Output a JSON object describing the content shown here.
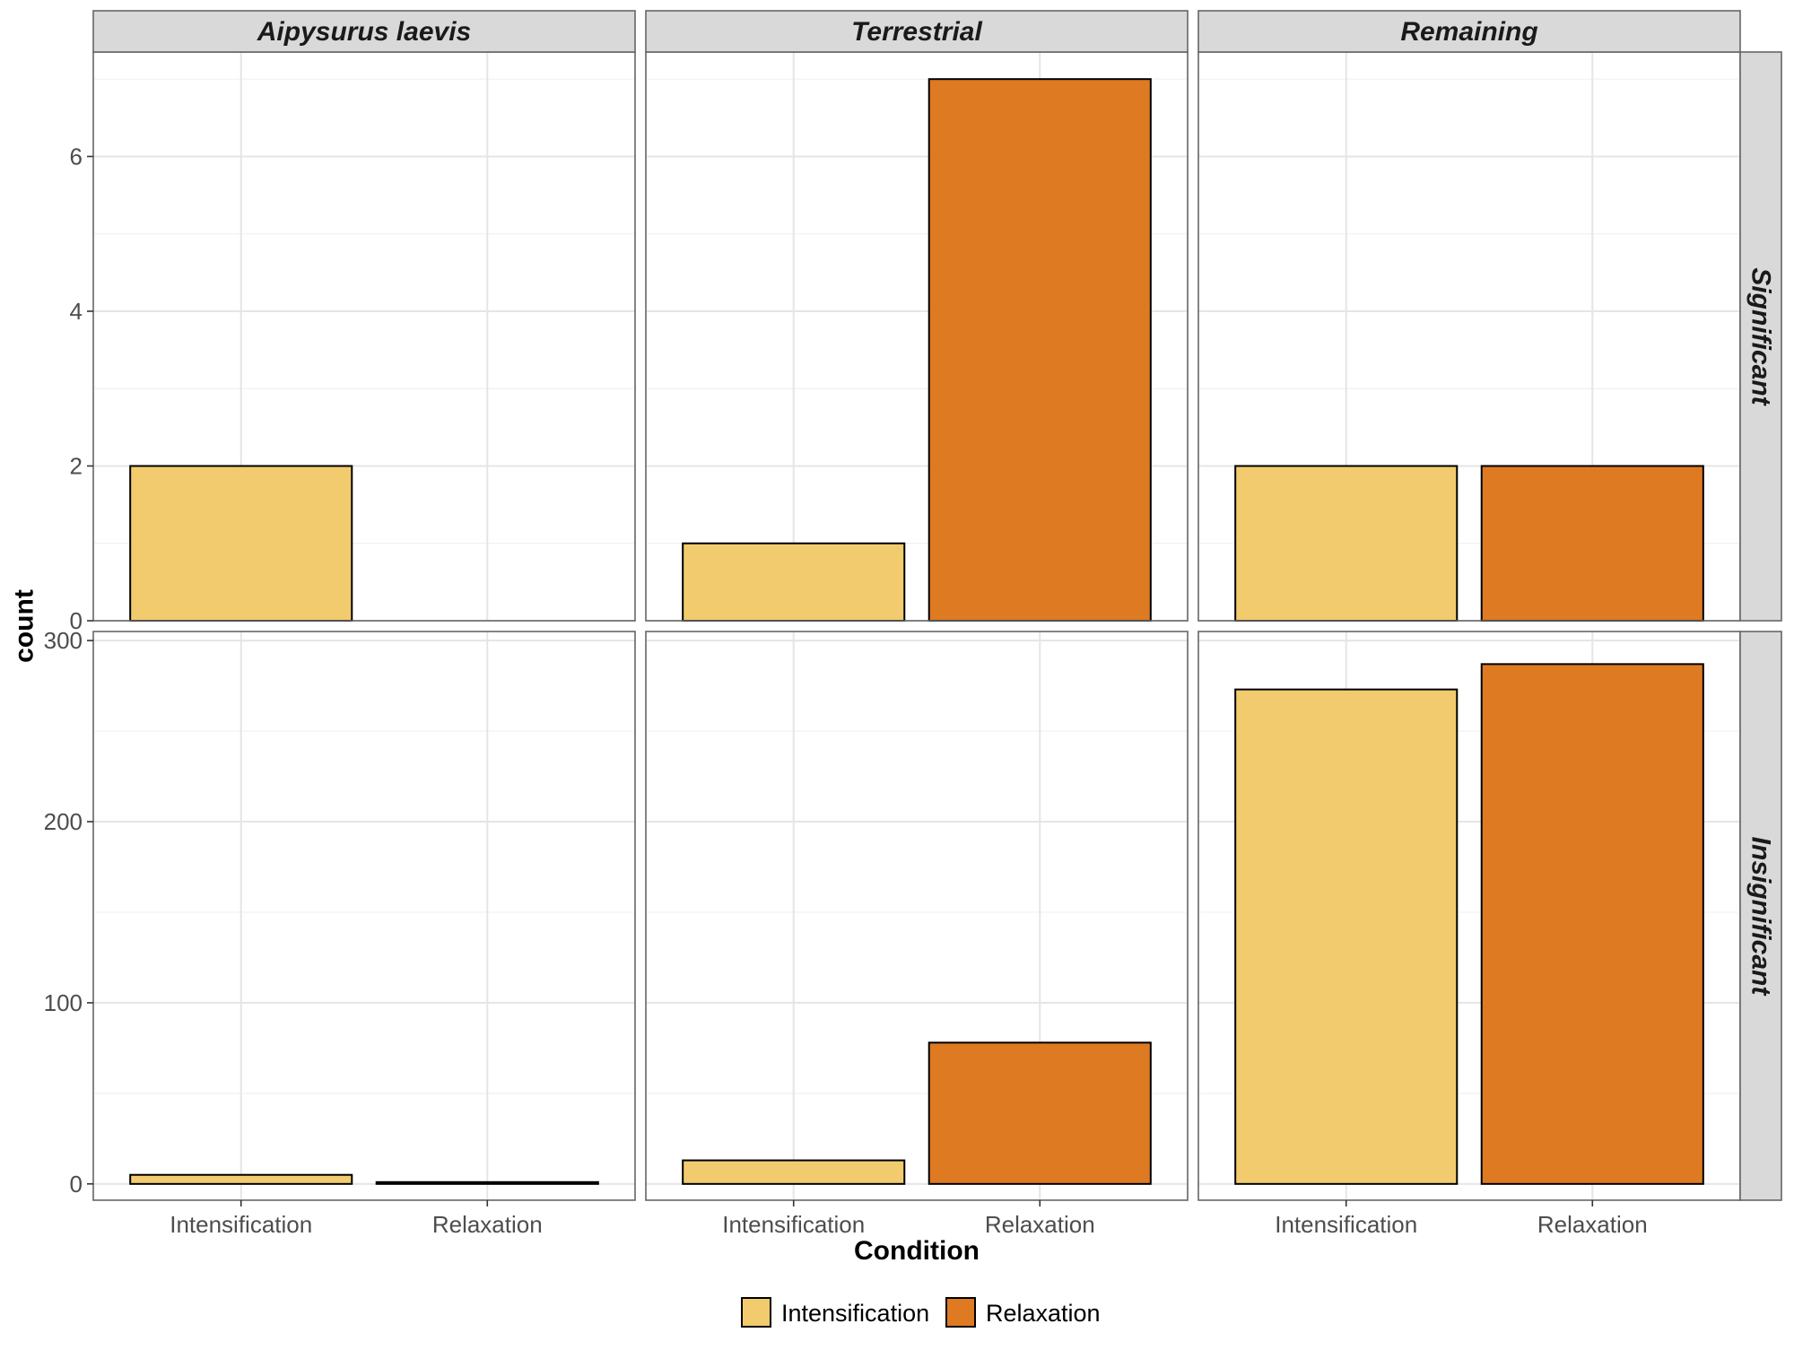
{
  "chart_data": {
    "type": "bar",
    "facet_columns": [
      "Aipysurus laevis",
      "Terrestrial",
      "Remaining"
    ],
    "facet_rows": [
      "Significant",
      "Insignificant"
    ],
    "categories": [
      "Intensification",
      "Relaxation"
    ],
    "xlabel": "Condition",
    "ylabel": "count",
    "row_scales": [
      {
        "ylim": [
          0,
          7.35
        ],
        "ticks": [
          0,
          2,
          4,
          6
        ],
        "minor_ticks": [
          1,
          3,
          5,
          7
        ]
      },
      {
        "ylim": [
          -9,
          305
        ],
        "ticks": [
          0,
          100,
          200,
          300
        ],
        "minor_ticks": [
          50,
          150,
          250
        ]
      }
    ],
    "panels": [
      {
        "row": "Significant",
        "column": "Aipysurus laevis",
        "values": [
          2,
          0
        ]
      },
      {
        "row": "Significant",
        "column": "Terrestrial",
        "values": [
          1,
          7
        ]
      },
      {
        "row": "Significant",
        "column": "Remaining",
        "values": [
          2,
          2
        ]
      },
      {
        "row": "Insignificant",
        "column": "Aipysurus laevis",
        "values": [
          5,
          1
        ]
      },
      {
        "row": "Insignificant",
        "column": "Terrestrial",
        "values": [
          13,
          78
        ]
      },
      {
        "row": "Insignificant",
        "column": "Remaining",
        "values": [
          273,
          287
        ]
      }
    ],
    "colors": {
      "Intensification": "#F2CB6F",
      "Relaxation": "#DE7A22"
    },
    "legend": {
      "position": "bottom",
      "entries": [
        "Intensification",
        "Relaxation"
      ]
    },
    "grid": true
  }
}
